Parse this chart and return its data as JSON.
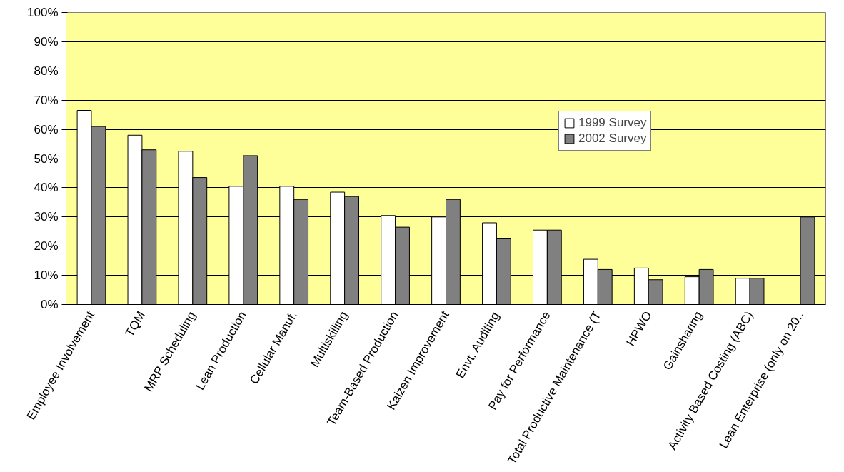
{
  "chart_data": {
    "type": "bar",
    "categories": [
      "Employee Involvement",
      "TQM",
      "MRP Scheduling",
      "Lean Production",
      "Cellular Manuf.",
      "Multiskilling",
      "Team-Based Production",
      "Kaizen Improvement",
      "Envt. Auditing",
      "Pay for Performance",
      "Total Productive Maintenance (T",
      "HPWO",
      "Gainsharing",
      "Activity Based Costing (ABC)",
      "Lean Enterprise (only on 20.."
    ],
    "series": [
      {
        "name": "1999 Survey",
        "color": "#ffffff",
        "values": [
          66.5,
          58,
          52.5,
          40.5,
          40.5,
          38.5,
          30.5,
          30,
          28,
          25.5,
          15.5,
          12.5,
          9.5,
          9,
          null
        ]
      },
      {
        "name": "2002 Survey",
        "color": "#808080",
        "values": [
          61,
          53,
          43.5,
          51,
          36,
          37,
          26.5,
          36,
          22.5,
          25.5,
          12,
          8.5,
          12,
          9,
          30
        ]
      }
    ],
    "ylim": [
      0,
      100
    ],
    "yticks": [
      {
        "value": 0,
        "label": "0%"
      },
      {
        "value": 10,
        "label": "10%"
      },
      {
        "value": 20,
        "label": "20%"
      },
      {
        "value": 30,
        "label": "30%"
      },
      {
        "value": 40,
        "label": "40%"
      },
      {
        "value": 50,
        "label": "50%"
      },
      {
        "value": 60,
        "label": "60%"
      },
      {
        "value": 70,
        "label": "70%"
      },
      {
        "value": 80,
        "label": "80%"
      },
      {
        "value": 90,
        "label": "90%"
      },
      {
        "value": 100,
        "label": "100%"
      }
    ],
    "grid": "y",
    "legend": "top right"
  }
}
